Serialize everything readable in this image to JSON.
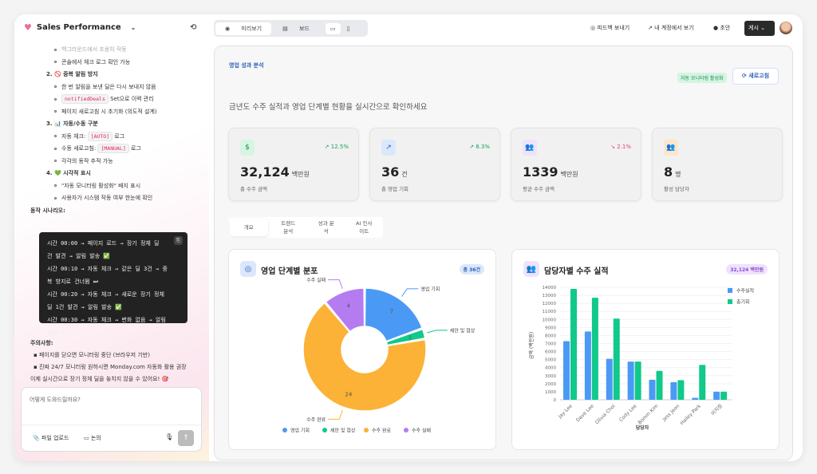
{
  "app": {
    "title": "Sales Performance"
  },
  "chat": {
    "lines": [
      {
        "type": "bullet",
        "text": "백그라운드에서 조용히 작동",
        "faded": true
      },
      {
        "type": "bullet",
        "text": "콘솔에서 체크 로그 확인 가능"
      },
      {
        "type": "heading",
        "text": "2. 🚫 중복 알림 방지"
      },
      {
        "type": "bullet",
        "text": "한 번 알림을 보낸 딜은 다시 보내지 않음"
      },
      {
        "type": "bullet",
        "code": "notifiedDeals",
        "text": " Set으로 이력 관리"
      },
      {
        "type": "bullet",
        "text": "페이지 새로고침 시 초기화 (의도적 설계)"
      },
      {
        "type": "heading",
        "text": "3. 📊 자동/수동 구분"
      },
      {
        "type": "bullet",
        "pre": "자동 체크: ",
        "code": "[AUTO]",
        "text": " 로그"
      },
      {
        "type": "bullet",
        "pre": "수동 새로고침: ",
        "code": "[MANUAL]",
        "text": " 로그"
      },
      {
        "type": "bullet",
        "text": "각각의 동작 추적 가능"
      },
      {
        "type": "heading",
        "text": "4. 💚 시각적 표시"
      },
      {
        "type": "bullet",
        "text": "\"자동 모니터링 활성화\" 배지 표시"
      },
      {
        "type": "bullet",
        "text": "사용자가 시스템 작동 여부 한눈에 확인"
      },
      {
        "type": "label",
        "text": "동작 시나리오:"
      }
    ],
    "code_lines": [
      "시간 00:00 → 페이지 로드 → 장기 정체 딜",
      "건 발견 → 알림 발송 ✅",
      "시간 00:10 → 자동 체크 → 같은 딜 3건 → 중",
      "복 방지로 건너뜀 ⏭",
      "시간 00:20 → 자동 체크 → 새로운 장기 정체",
      "딜 1건 발견 → 알림 발송 ✅",
      "시간 00:30 → 자동 체크 → 변화 없음 → 알림",
      "없음 ⏭"
    ],
    "notes_title": "주의사항:",
    "notes": [
      "페이지를 닫으면 모니터링 중단 (브라우저 기반)",
      "진짜 24/7 모니터링 원하시면 Monday.com 자동화 활용 권장"
    ],
    "closing": "이제 실시간으로 장기 정체 딜을 놓치지 않을 수 있어요! 🎯",
    "input_placeholder": "어떻게 도와드릴까요?",
    "upload_label": "파일 업로드",
    "discuss_label": "논의"
  },
  "toolbar": {
    "preview": "미리보기",
    "board": "보드",
    "code": "코드",
    "feedback": "피드백 보내기",
    "open_account": "내 계정에서 보기",
    "draft": "초안",
    "publish": "게시"
  },
  "page": {
    "section": "영업 성과 분석",
    "badge": "자동 모니터링 활성화",
    "refresh": "새로고침",
    "subtitle": "금년도 수주 실적과 영업 단계별 현황을 실시간으로 확인하세요"
  },
  "kpis": [
    {
      "icon": "dollar-icon",
      "value": "32,124",
      "unit": "백만원",
      "label": "총 수주 금액",
      "trend": "↗ 12.5%",
      "dir": "up"
    },
    {
      "icon": "trending-up-icon",
      "value": "36",
      "unit": "건",
      "label": "총 영업 기회",
      "trend": "↗ 8.3%",
      "dir": "up"
    },
    {
      "icon": "users-icon",
      "value": "1339",
      "unit": "백만원",
      "label": "평균 수주 금액",
      "trend": "↘ 2.1%",
      "dir": "down"
    },
    {
      "icon": "users-icon",
      "value": "8",
      "unit": "명",
      "label": "활성 담당자",
      "trend": "",
      "dir": ""
    }
  ],
  "tabs": [
    {
      "l1": "개요",
      "l2": ""
    },
    {
      "l1": "트렌드",
      "l2": "분석"
    },
    {
      "l1": "성과 분",
      "l2": "석"
    },
    {
      "l1": "AI 인사",
      "l2": "이트"
    }
  ],
  "chart_data": [
    {
      "type": "pie",
      "title": "영업 단계별 분포",
      "badge": "총 36건",
      "donut": true,
      "categories": [
        "영업 기회",
        "제안 및 협상",
        "수주 완료",
        "수주 실패"
      ],
      "values": [
        7,
        1,
        24,
        4
      ],
      "colors": [
        "#4a9af5",
        "#10c98a",
        "#fbb236",
        "#b57cf2"
      ],
      "legend": "bottom"
    },
    {
      "type": "bar",
      "title": "담당자별 수주 실적",
      "badge": "32,124 백만원",
      "categories": [
        "Jay Lee",
        "Dave Lee",
        "Olivia Choi",
        "Cody Lee",
        "Bomin Kim",
        "Jess Jeon",
        "Hailey Park",
        "미지정"
      ],
      "series": [
        {
          "name": "수주실적",
          "values": [
            7300,
            8500,
            5100,
            4750,
            2500,
            2200,
            250,
            1000
          ],
          "color": "#4a9af5"
        },
        {
          "name": "총기회",
          "values": [
            13800,
            12700,
            10100,
            4750,
            3600,
            2450,
            4350,
            1000
          ],
          "color": "#10c98a"
        }
      ],
      "xlabel": "담당자",
      "ylabel": "금액 (백만원)",
      "ylim": [
        0,
        14000
      ],
      "yticks": [
        0,
        1000,
        2000,
        3000,
        4000,
        5000,
        6000,
        7000,
        8000,
        9000,
        10000,
        11000,
        12000,
        13000,
        14000
      ],
      "legend": "top-right"
    }
  ]
}
